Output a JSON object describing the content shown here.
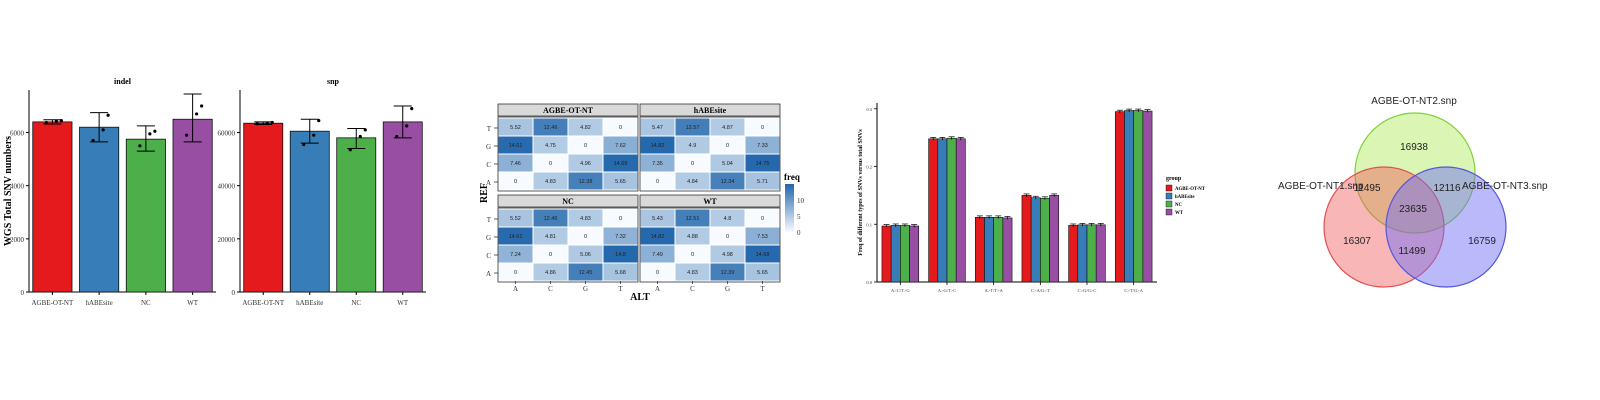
{
  "colors": {
    "red": "#e41a1c",
    "blue": "#377eb8",
    "green": "#4daf4a",
    "purple": "#984ea3"
  },
  "chart_data": [
    {
      "type": "bar",
      "title": "indel",
      "ylabel": "WGS Total SNV numbers",
      "categories": [
        "AGBE-OT-NT",
        "hABEsite",
        "NC",
        "WT"
      ],
      "values": [
        6400,
        6200,
        5750,
        6500
      ],
      "error_low": [
        6320,
        5650,
        5300,
        5650
      ],
      "error_high": [
        6480,
        6750,
        6250,
        7450
      ],
      "points": [
        [
          6380,
          6420,
          6450
        ],
        [
          5700,
          6100,
          6650
        ],
        [
          5500,
          5950,
          6050
        ],
        [
          5900,
          6700,
          7000
        ]
      ],
      "ylim": [
        0,
        7600
      ],
      "yticks": [
        "0",
        "2000",
        "4000",
        "6000"
      ],
      "ytick_values": [
        0,
        2000,
        4000,
        6000
      ]
    },
    {
      "type": "bar",
      "title": "snp",
      "categories": [
        "AGBE-OT-NT",
        "hABEsite",
        "NC",
        "WT"
      ],
      "values": [
        63500,
        60500,
        58000,
        64000
      ],
      "error_low": [
        63000,
        56000,
        54000,
        58000
      ],
      "error_high": [
        64000,
        65000,
        61500,
        70000
      ],
      "points": [
        [
          63300,
          63600,
          63800
        ],
        [
          55500,
          59000,
          64500
        ],
        [
          53500,
          58500,
          61000
        ],
        [
          58500,
          62500,
          69000
        ]
      ],
      "ylim": [
        0,
        76000
      ],
      "yticks": [
        "0",
        "20000",
        "40000",
        "60000"
      ],
      "ytick_values": [
        0,
        20000,
        40000,
        60000
      ]
    },
    {
      "type": "heatmap",
      "xlabel": "ALT",
      "ylabel": "REF",
      "legend_title": "freq",
      "legend_ticks": [
        "10",
        "5",
        "0"
      ],
      "legend_tick_values": [
        10,
        5,
        0
      ],
      "x": [
        "A",
        "C",
        "G",
        "T"
      ],
      "y": [
        "T",
        "G",
        "C",
        "A"
      ],
      "panels": [
        {
          "name": "AGBE-OT-NT",
          "values": [
            [
              5.52,
              12.46,
              4.82,
              0
            ],
            [
              14.61,
              4.75,
              0,
              7.62
            ],
            [
              7.46,
              0,
              4.96,
              14.69
            ],
            [
              0,
              4.83,
              12.38,
              5.65
            ]
          ]
        },
        {
          "name": "hABEsite",
          "values": [
            [
              5.47,
              12.57,
              4.87,
              0
            ],
            [
              14.82,
              4.9,
              0,
              7.33
            ],
            [
              7.35,
              0,
              5.04,
              14.75
            ],
            [
              0,
              4.84,
              12.34,
              5.71
            ]
          ]
        },
        {
          "name": "NC",
          "values": [
            [
              5.52,
              12.46,
              4.83,
              0
            ],
            [
              14.61,
              4.81,
              0,
              7.32
            ],
            [
              7.24,
              0,
              5.06,
              14.8
            ],
            [
              0,
              4.86,
              12.45,
              5.68
            ]
          ]
        },
        {
          "name": "WT",
          "values": [
            [
              5.43,
              12.51,
              4.8,
              0
            ],
            [
              14.82,
              4.88,
              0,
              7.53
            ],
            [
              7.49,
              0,
              4.98,
              14.68
            ],
            [
              0,
              4.83,
              12.39,
              5.65
            ]
          ]
        }
      ]
    },
    {
      "type": "bar",
      "ylabel": "Freq of different types of SNVs versus total SNVs",
      "categories": [
        "A>C/T>G",
        "A>G/T>C",
        "A>T/T>A",
        "C>A/G>T",
        "C>G/G>C",
        "C>T/G>A"
      ],
      "series": [
        {
          "name": "AGBE-OT-NT",
          "values": [
            0.097,
            0.248,
            0.112,
            0.15,
            0.098,
            0.295
          ]
        },
        {
          "name": "hABEsite",
          "values": [
            0.098,
            0.248,
            0.112,
            0.146,
            0.099,
            0.297
          ]
        },
        {
          "name": "NC",
          "values": [
            0.098,
            0.249,
            0.112,
            0.145,
            0.099,
            0.297
          ]
        },
        {
          "name": "WT",
          "values": [
            0.097,
            0.248,
            0.111,
            0.15,
            0.099,
            0.296
          ]
        }
      ],
      "legend_title": "group",
      "legend_position": "right",
      "ylim": [
        0,
        0.31
      ],
      "yticks": [
        "0.0",
        "0.1",
        "0.2",
        "0.3"
      ],
      "ytick_values": [
        0,
        0.1,
        0.2,
        0.3
      ]
    },
    {
      "type": "venn",
      "sets": [
        "AGBE-OT-NT1.snp",
        "AGBE-OT-NT2.snp",
        "AGBE-OT-NT3.snp"
      ],
      "regions": {
        "only1": "16307",
        "only2": "16938",
        "only3": "16759",
        "s12": "11495",
        "s23": "12116",
        "s13": "11499",
        "s123": "23635"
      }
    }
  ]
}
